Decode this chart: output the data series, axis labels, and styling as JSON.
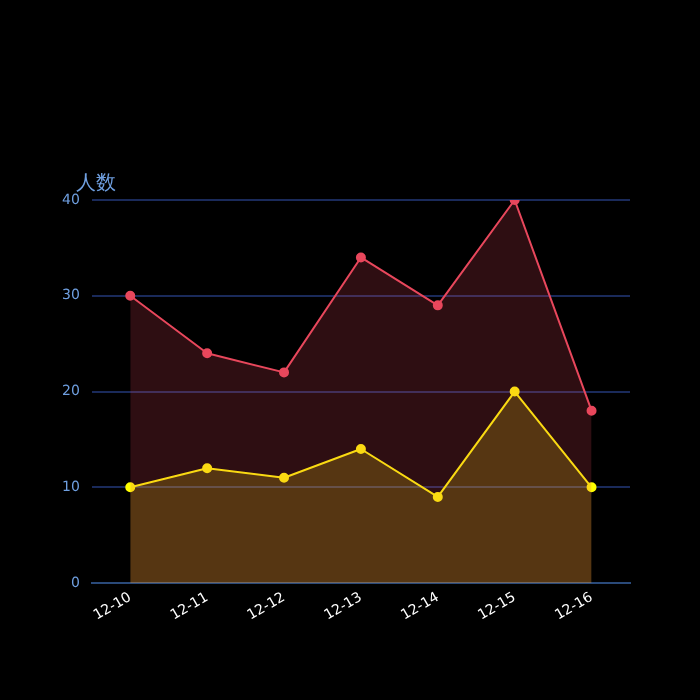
{
  "chart_data": {
    "type": "area",
    "ylabel": "人数",
    "categories": [
      "12-10",
      "12-11",
      "12-12",
      "12-13",
      "12-14",
      "12-15",
      "12-16"
    ],
    "series": [
      {
        "color": "#e8475c",
        "values": [
          30,
          24,
          22,
          34,
          29,
          40,
          18
        ]
      },
      {
        "color": "#ffff00",
        "values": [
          10,
          12,
          11,
          14,
          9,
          20,
          10
        ]
      }
    ],
    "ylim": [
      0,
      40
    ],
    "yticks": [
      0,
      10,
      20,
      30,
      40
    ],
    "grid": "y",
    "marker": "circle",
    "legend": false
  }
}
